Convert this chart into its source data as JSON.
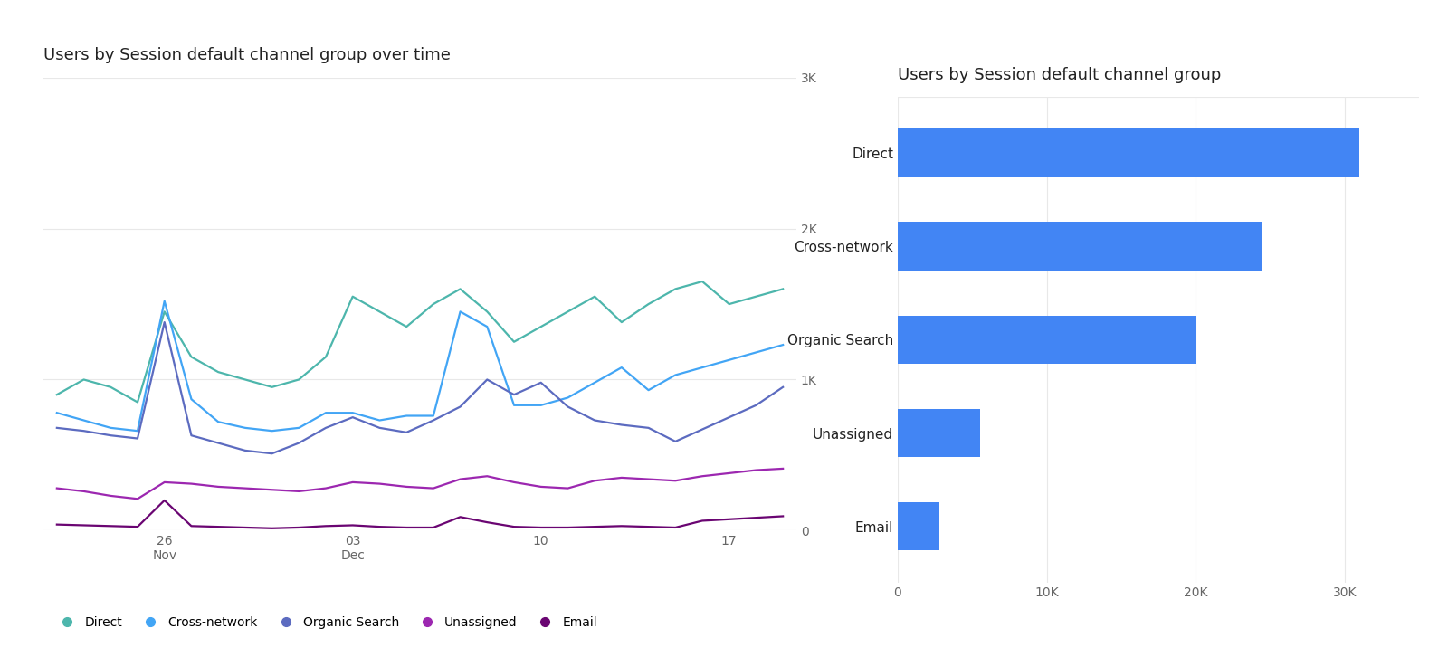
{
  "line_title": "Users by Session default channel group over time",
  "bar_title": "Users by Session default channel group",
  "direct": [
    900,
    1000,
    950,
    850,
    1450,
    1150,
    1050,
    1000,
    950,
    1000,
    1150,
    1550,
    1450,
    1350,
    1500,
    1600,
    1450,
    1250,
    1350,
    1450,
    1550,
    1380,
    1500,
    1600,
    1650,
    1500,
    1550,
    1600
  ],
  "cross_network": [
    780,
    730,
    680,
    660,
    1520,
    870,
    720,
    680,
    660,
    680,
    780,
    780,
    730,
    760,
    760,
    1450,
    1350,
    830,
    830,
    880,
    980,
    1080,
    930,
    1030,
    1080,
    1130,
    1180,
    1230
  ],
  "organic_search": [
    680,
    660,
    630,
    610,
    1380,
    630,
    580,
    530,
    510,
    580,
    680,
    750,
    680,
    650,
    730,
    820,
    1000,
    900,
    980,
    820,
    730,
    700,
    680,
    590,
    670,
    750,
    830,
    950
  ],
  "unassigned": [
    280,
    260,
    230,
    210,
    320,
    310,
    290,
    280,
    270,
    260,
    280,
    320,
    310,
    290,
    280,
    340,
    360,
    320,
    290,
    280,
    330,
    350,
    340,
    330,
    360,
    380,
    400,
    410
  ],
  "email": [
    40,
    35,
    30,
    25,
    200,
    30,
    25,
    20,
    15,
    20,
    30,
    35,
    25,
    20,
    20,
    90,
    55,
    25,
    20,
    20,
    25,
    30,
    25,
    20,
    65,
    75,
    85,
    95
  ],
  "bar_categories": [
    "Direct",
    "Cross-network",
    "Organic Search",
    "Unassigned",
    "Email"
  ],
  "bar_values": [
    31000,
    24500,
    20000,
    5500,
    2800
  ],
  "bar_color": "#4285f4",
  "line_colors": {
    "Direct": "#4db6ac",
    "Cross-network": "#42a5f5",
    "Organic Search": "#5c6bc0",
    "Unassigned": "#9c27b0",
    "Email": "#6a0572"
  },
  "ylim_line": [
    0,
    3000
  ],
  "yticks_line": [
    0,
    1000,
    2000,
    3000
  ],
  "ytick_labels_line": [
    "0",
    "1K",
    "2K",
    "3K"
  ],
  "xlim_bar": [
    0,
    35000
  ],
  "xticks_bar": [
    0,
    10000,
    20000,
    30000
  ],
  "xtick_labels_bar": [
    "0",
    "10K",
    "20K",
    "30K"
  ],
  "background_color": "#ffffff",
  "grid_color": "#e8e8e8",
  "title_fontsize": 13,
  "label_fontsize": 11,
  "tick_fontsize": 10,
  "legend_fontsize": 10
}
